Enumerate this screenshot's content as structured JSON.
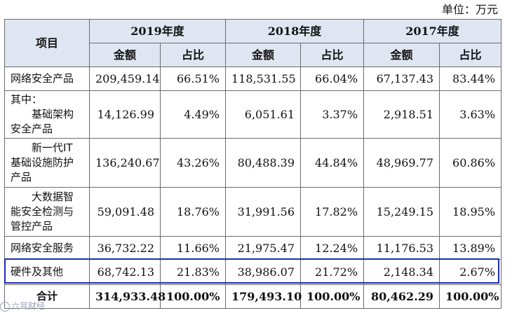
{
  "unit": "单位：万元",
  "header": {
    "item": "项目",
    "years": [
      "2019年度",
      "2018年度",
      "2017年度"
    ],
    "amount": "金额",
    "ratio": "占比"
  },
  "rows": [
    {
      "label": [
        "网络安全产品"
      ],
      "values": [
        "209,459.14",
        "66.51%",
        "118,531.55",
        "66.04%",
        "67,137.43",
        "83.44%"
      ]
    },
    {
      "label": [
        "其中：",
        "基础架构",
        "安全产品"
      ],
      "values": [
        "14,126.99",
        "4.49%",
        "6,051.61",
        "3.37%",
        "2,918.51",
        "3.63%"
      ]
    },
    {
      "label": [
        "新一代IT",
        "基础设施防护",
        "产品"
      ],
      "values": [
        "136,240.67",
        "43.26%",
        "80,488.39",
        "44.84%",
        "48,969.77",
        "60.86%"
      ]
    },
    {
      "label": [
        "大数据智",
        "能安全检测与",
        "管控产品"
      ],
      "values": [
        "59,091.48",
        "18.76%",
        "31,991.56",
        "17.82%",
        "15,249.15",
        "18.95%"
      ]
    },
    {
      "label": [
        "网络安全服务"
      ],
      "values": [
        "36,732.22",
        "11.66%",
        "21,975.47",
        "12.24%",
        "11,176.53",
        "13.89%"
      ]
    },
    {
      "label": [
        "硬件及其他"
      ],
      "values": [
        "68,742.13",
        "21.83%",
        "38,986.07",
        "21.72%",
        "2,148.34",
        "2.67%"
      ]
    }
  ],
  "total": {
    "label": "合计",
    "values": [
      "314,933.48",
      "100.00%",
      "179,493.10",
      "100.00%",
      "80,462.29",
      "100.00%"
    ]
  },
  "watermark": "六耳财经",
  "colors": {
    "header_bg": "#dfe6f2",
    "highlight_border": "#1d2db3"
  }
}
